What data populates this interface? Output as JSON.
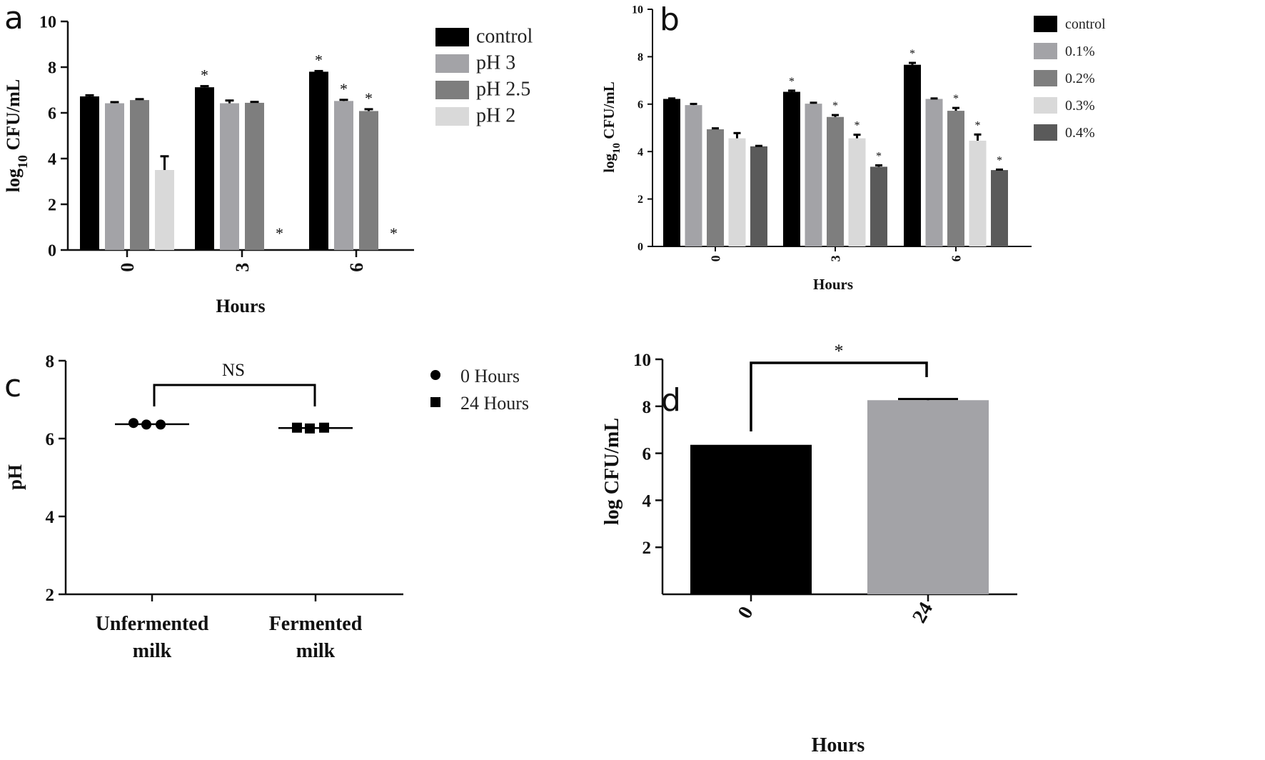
{
  "chart_data": [
    {
      "panel": "a",
      "type": "bar",
      "xlabel": "Hours",
      "ylabel": "log10 CFU/mL",
      "ylim": [
        0,
        10
      ],
      "yticks": [
        0,
        2,
        4,
        6,
        8,
        10
      ],
      "categories": [
        "0",
        "3",
        "6"
      ],
      "legend": "top-right",
      "series": [
        {
          "name": "control",
          "color": "#000000",
          "values": [
            6.72,
            7.12,
            7.8
          ],
          "errors": [
            0.05,
            0.05,
            0.03
          ],
          "sig": [
            false,
            true,
            true
          ]
        },
        {
          "name": "pH 3",
          "color": "#a3a3a7",
          "values": [
            6.42,
            6.42,
            6.52
          ],
          "errors": [
            0.05,
            0.12,
            0.05
          ],
          "sig": [
            false,
            false,
            true
          ]
        },
        {
          "name": "pH 2.5",
          "color": "#7e7e7e",
          "values": [
            6.56,
            6.44,
            6.08
          ],
          "errors": [
            0.04,
            0.04,
            0.08
          ],
          "sig": [
            false,
            false,
            true
          ]
        },
        {
          "name": "pH 2",
          "color": "#d9d9d9",
          "values": [
            3.5,
            0,
            0
          ],
          "errors": [
            0.6,
            0,
            0
          ],
          "sig": [
            false,
            true,
            true
          ]
        }
      ]
    },
    {
      "panel": "b",
      "type": "bar",
      "xlabel": "Hours",
      "ylabel": "log10 CFU/mL",
      "ylim": [
        0,
        10
      ],
      "yticks": [
        0,
        2,
        4,
        6,
        8,
        10
      ],
      "categories": [
        "0",
        "3",
        "6"
      ],
      "legend": "top-right",
      "series": [
        {
          "name": "control",
          "color": "#000000",
          "values": [
            6.22,
            6.52,
            7.66
          ],
          "errors": [
            0.02,
            0.05,
            0.08
          ],
          "sig": [
            false,
            true,
            true
          ]
        },
        {
          "name": "0.1%",
          "color": "#a3a3a7",
          "values": [
            5.96,
            6.02,
            6.22
          ],
          "errors": [
            0.05,
            0.04,
            0.02
          ],
          "sig": [
            false,
            false,
            false
          ]
        },
        {
          "name": "0.2%",
          "color": "#7e7e7e",
          "values": [
            4.94,
            5.46,
            5.72
          ],
          "errors": [
            0.04,
            0.08,
            0.12
          ],
          "sig": [
            false,
            true,
            true
          ]
        },
        {
          "name": "0.3%",
          "color": "#d9d9d9",
          "values": [
            4.56,
            4.56,
            4.46
          ],
          "errors": [
            0.22,
            0.15,
            0.26
          ],
          "sig": [
            false,
            true,
            true
          ]
        },
        {
          "name": "0.4%",
          "color": "#5a5a5a",
          "values": [
            4.22,
            3.36,
            3.22
          ],
          "errors": [
            0.02,
            0.06,
            0.02
          ],
          "sig": [
            false,
            true,
            true
          ]
        }
      ]
    },
    {
      "panel": "c",
      "type": "scatter",
      "ylabel": "pH",
      "ylim": [
        2,
        8
      ],
      "yticks": [
        2,
        4,
        6,
        8
      ],
      "categories": [
        "Unfermented milk",
        "Fermented milk"
      ],
      "category_lines": [
        [
          "Unfermented",
          "milk"
        ],
        [
          "Fermented",
          "milk"
        ]
      ],
      "legend": "top-right",
      "series": [
        {
          "name": "0 Hours",
          "marker": "circle",
          "color": "#000000",
          "points": [
            6.4,
            6.36,
            6.36
          ],
          "mean": 6.37
        },
        {
          "name": "24 Hours",
          "marker": "square",
          "color": "#000000",
          "points": [
            6.28,
            6.26,
            6.28
          ],
          "mean": 6.27
        }
      ],
      "annotation": "NS"
    },
    {
      "panel": "d",
      "type": "bar",
      "xlabel": "Hours",
      "ylabel": "log CFU/mL",
      "ylim": [
        0,
        10
      ],
      "yticks": [
        2,
        4,
        6,
        8,
        10
      ],
      "categories": [
        "0",
        "24"
      ],
      "values": [
        6.36,
        8.26
      ],
      "errors": [
        0,
        0.05
      ],
      "colors": [
        "#000000",
        "#a3a3a7"
      ],
      "annotation": "*"
    }
  ]
}
